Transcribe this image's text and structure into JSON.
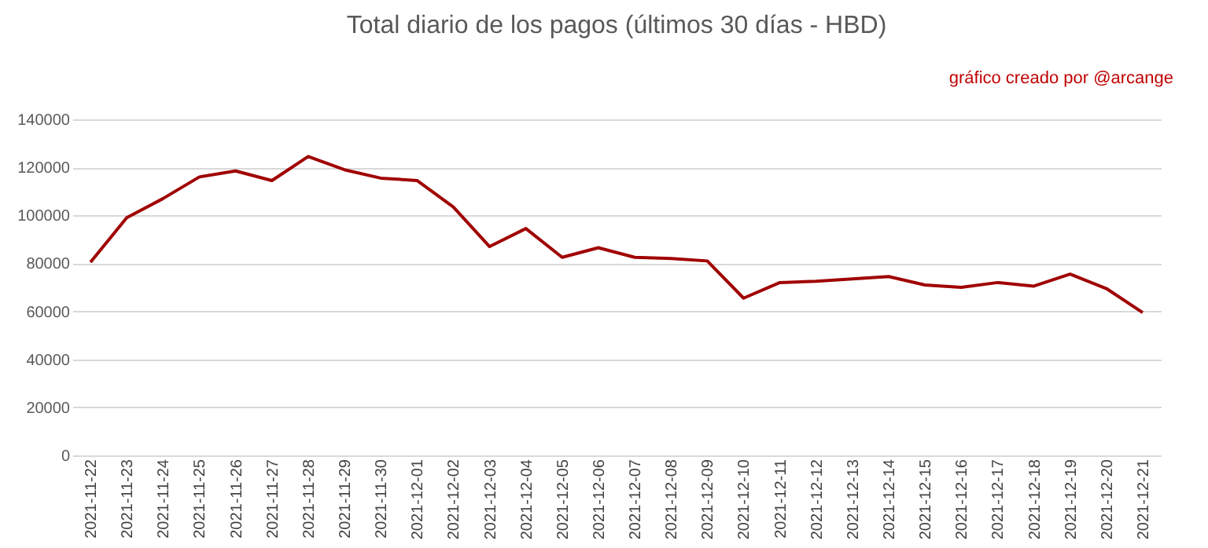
{
  "chart_data": {
    "type": "line",
    "title": "Total diario de los pagos (últimos 30 días - HBD)",
    "annotations": [
      "gráfico creado por @arcange"
    ],
    "categories": [
      "2021-11-22",
      "2021-11-23",
      "2021-11-24",
      "2021-11-25",
      "2021-11-26",
      "2021-11-27",
      "2021-11-28",
      "2021-11-29",
      "2021-11-30",
      "2021-12-01",
      "2021-12-02",
      "2021-12-03",
      "2021-12-04",
      "2021-12-05",
      "2021-12-06",
      "2021-12-07",
      "2021-12-08",
      "2021-12-09",
      "2021-12-10",
      "2021-12-11",
      "2021-12-12",
      "2021-12-13",
      "2021-12-14",
      "2021-12-15",
      "2021-12-16",
      "2021-12-17",
      "2021-12-18",
      "2021-12-19",
      "2021-12-20",
      "2021-12-21"
    ],
    "series": [
      {
        "color": "#a00000",
        "values": [
          80500,
          99000,
          107000,
          116000,
          118500,
          114500,
          124500,
          119000,
          115500,
          114500,
          103500,
          87000,
          94500,
          82500,
          86500,
          82500,
          82000,
          81000,
          65500,
          72000,
          72500,
          73500,
          74500,
          71000,
          70000,
          72000,
          70500,
          75500,
          69500,
          59500
        ]
      }
    ],
    "ylim": [
      0,
      140000
    ],
    "yticks": [
      0,
      20000,
      40000,
      60000,
      80000,
      100000,
      120000,
      140000
    ],
    "grid": "y",
    "marker": "none",
    "line_style": "solid"
  }
}
